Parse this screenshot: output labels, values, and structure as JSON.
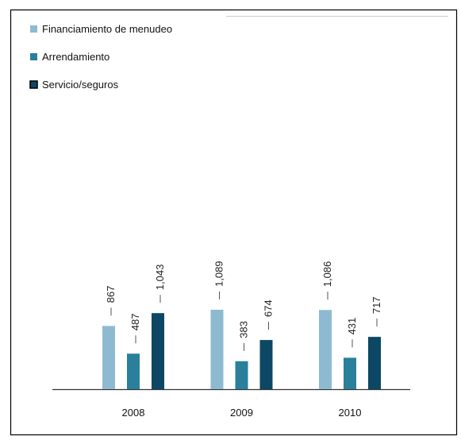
{
  "chart_data": {
    "type": "bar",
    "categories": [
      "2008",
      "2009",
      "2010"
    ],
    "series": [
      {
        "name": "Financiamiento de menudeo",
        "color": "#8dbad1",
        "values": [
          867,
          1089,
          1086
        ],
        "value_labels": [
          "867",
          "1,089",
          "1,086"
        ]
      },
      {
        "name": "Arrendamiento",
        "color": "#2a7f9b",
        "values": [
          487,
          383,
          431
        ],
        "value_labels": [
          "487",
          "383",
          "431"
        ]
      },
      {
        "name": "Servicio/seguros",
        "color": "#0c4764",
        "values": [
          1043,
          674,
          717
        ],
        "value_labels": [
          "1,043",
          "674",
          "717"
        ]
      }
    ]
  }
}
